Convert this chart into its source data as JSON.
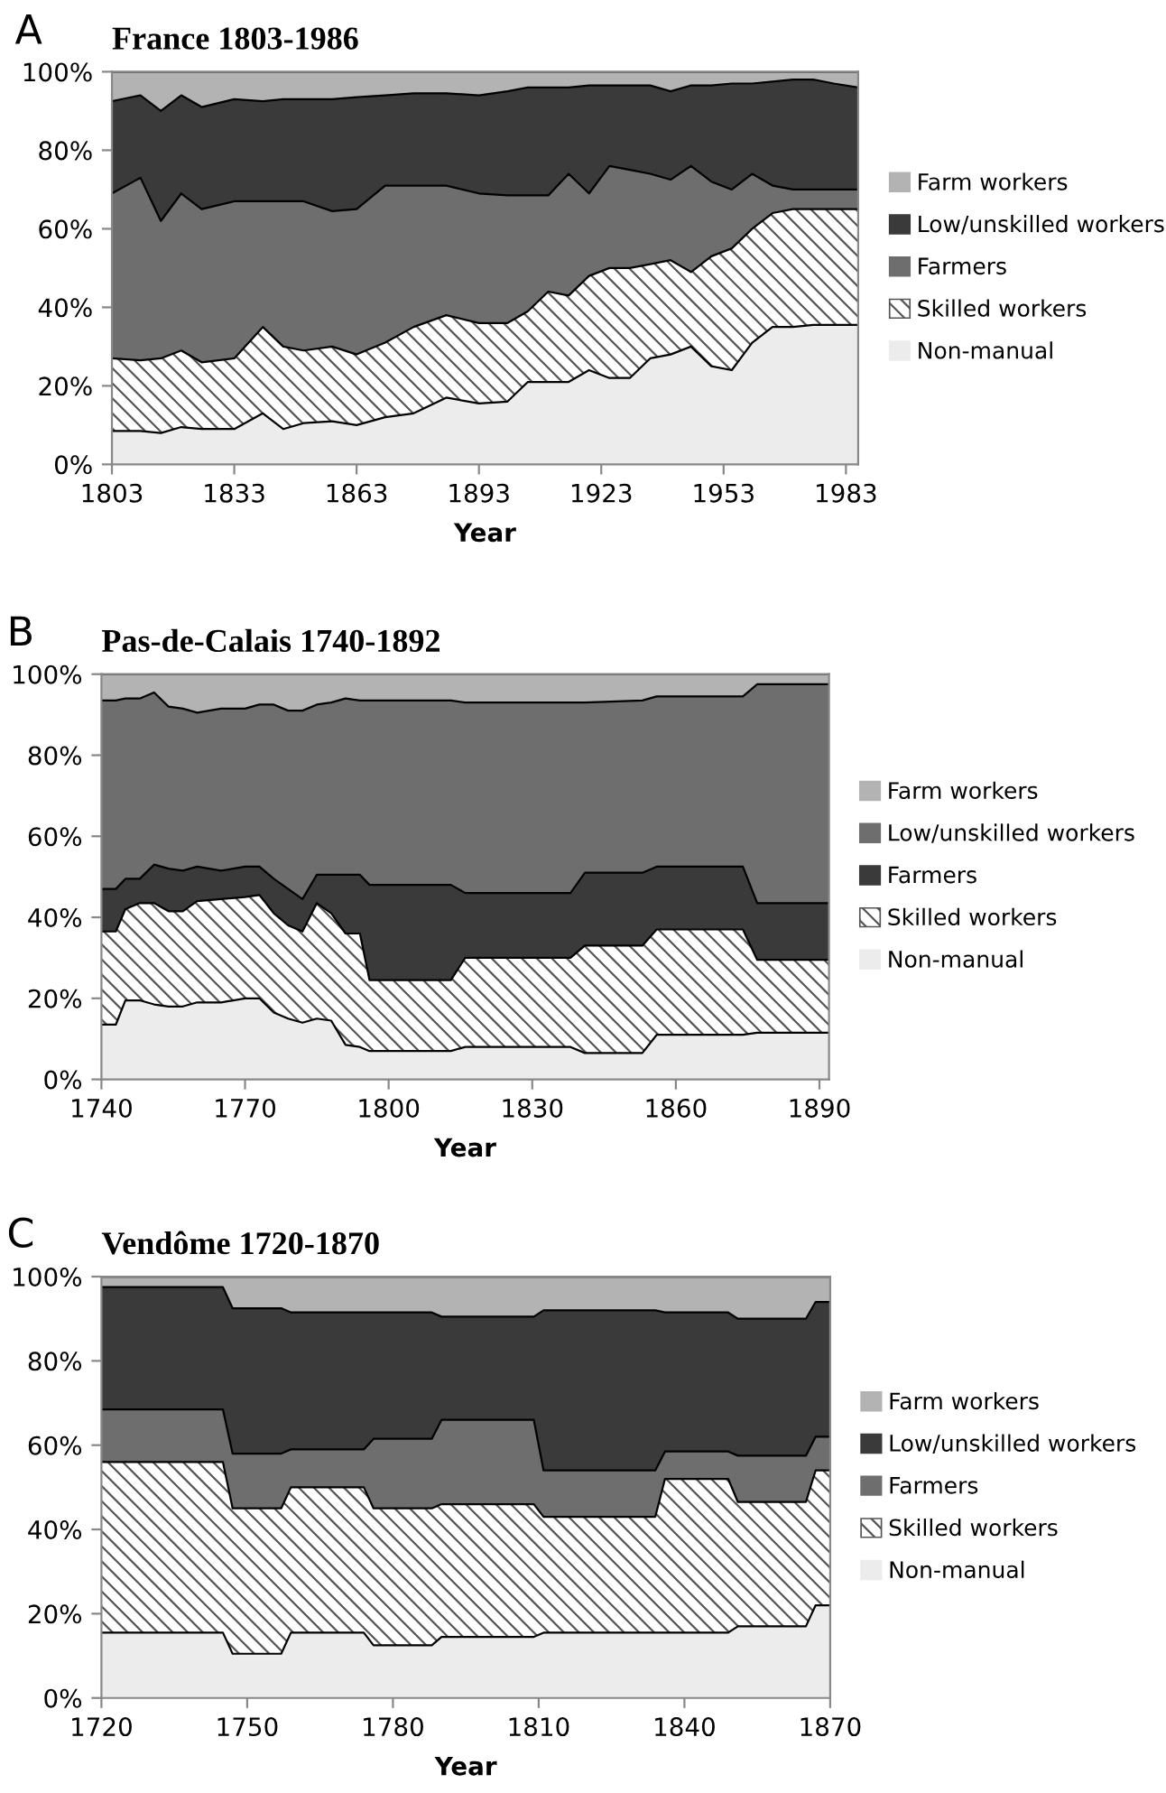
{
  "chart_data": [
    {
      "type": "area",
      "stacked": true,
      "title": "France 1803-1986",
      "xlabel": "Year",
      "annotations": [
        "A"
      ],
      "legend": "right",
      "grid": false,
      "x": [
        1803,
        1810,
        1815,
        1820,
        1825,
        1833,
        1840,
        1845,
        1850,
        1857,
        1863,
        1870,
        1877,
        1885,
        1893,
        1900,
        1905,
        1910,
        1915,
        1920,
        1925,
        1930,
        1935,
        1940,
        1945,
        1950,
        1955,
        1960,
        1965,
        1970,
        1975,
        1980,
        1986
      ],
      "xlim": [
        1803,
        1986
      ],
      "xticks": [
        1803,
        1833,
        1863,
        1893,
        1923,
        1953,
        1983
      ],
      "ylim": [
        0,
        100
      ],
      "yticks": [
        {
          "value": 0,
          "label": "0%"
        },
        {
          "value": 20,
          "label": "20%"
        },
        {
          "value": 40,
          "label": "40%"
        },
        {
          "value": 60,
          "label": "60%"
        },
        {
          "value": 80,
          "label": "80%"
        },
        {
          "value": 100,
          "label": "100%"
        }
      ],
      "series": [
        {
          "name": "Non-manual",
          "color": "#ececec",
          "values": [
            8.5,
            8.5,
            8,
            9.5,
            9,
            9,
            13,
            9,
            10.5,
            11,
            10,
            12,
            13,
            17,
            15.5,
            16,
            21,
            21,
            21,
            24,
            22,
            22,
            27,
            28,
            30,
            25,
            24,
            31,
            35,
            35,
            35.5,
            35.5,
            35.5
          ]
        },
        {
          "name": "Skilled workers",
          "color": "#555555",
          "values": [
            18.5,
            18,
            19,
            19.5,
            17,
            18,
            22,
            21,
            18.5,
            19,
            18,
            19,
            22,
            21,
            20.5,
            20,
            18,
            23,
            22,
            24,
            28,
            28,
            24,
            24,
            19,
            28,
            31,
            29,
            29,
            30,
            29.5,
            29.5,
            29.5
          ]
        },
        {
          "name": "Farmers",
          "color": "#6e6e6e",
          "values": [
            42,
            46.5,
            35,
            40,
            39,
            40,
            32,
            37,
            38,
            34.5,
            37,
            40,
            36,
            33,
            33,
            32.5,
            29.5,
            24.5,
            31,
            21,
            26,
            25,
            23,
            20.5,
            27,
            19,
            15,
            14,
            7,
            5,
            5,
            5,
            5
          ]
        },
        {
          "name": "Low/unskilled workers",
          "color": "#3a3a3a",
          "values": [
            23.5,
            21,
            28,
            25,
            26,
            26,
            25.5,
            26,
            26,
            28.5,
            28.5,
            23,
            23.5,
            23.5,
            25,
            26.5,
            27.5,
            27.5,
            22,
            27.5,
            20.5,
            21.5,
            22.5,
            22.5,
            20.5,
            24.5,
            27,
            23,
            26.5,
            28,
            28,
            27,
            26
          ]
        },
        {
          "name": "Farm workers",
          "color": "#b3b3b3",
          "values": [
            7.5,
            6,
            10,
            6,
            9,
            7,
            7.5,
            7,
            7,
            7,
            6.5,
            6,
            5.5,
            5.5,
            6,
            5,
            4,
            4,
            4,
            3.5,
            3.5,
            3.5,
            3.5,
            5,
            3.5,
            3.5,
            3,
            3,
            2.5,
            2,
            2,
            3,
            4
          ]
        }
      ]
    },
    {
      "type": "area",
      "stacked": true,
      "title": "Pas-de-Calais 1740-1892",
      "xlabel": "Year",
      "annotations": [
        "B"
      ],
      "legend": "right",
      "grid": false,
      "x": [
        1740,
        1743,
        1745,
        1748,
        1751,
        1754,
        1757,
        1760,
        1765,
        1770,
        1773,
        1776,
        1779,
        1782,
        1785,
        1788,
        1791,
        1794,
        1796,
        1800,
        1813,
        1816,
        1830,
        1838,
        1841,
        1853,
        1856,
        1865,
        1874,
        1877,
        1892
      ],
      "xlim": [
        1740,
        1892
      ],
      "xticks": [
        1740,
        1770,
        1800,
        1830,
        1860,
        1890
      ],
      "ylim": [
        0,
        100
      ],
      "yticks": [
        {
          "value": 0,
          "label": "0%"
        },
        {
          "value": 20,
          "label": "20%"
        },
        {
          "value": 40,
          "label": "40%"
        },
        {
          "value": 60,
          "label": "60%"
        },
        {
          "value": 80,
          "label": "80%"
        },
        {
          "value": 100,
          "label": "100%"
        }
      ],
      "series": [
        {
          "name": "Non-manual",
          "color": "#ececec",
          "values": [
            13.5,
            13.5,
            19.5,
            19.5,
            18.5,
            18,
            18,
            19,
            19,
            20,
            20,
            16.5,
            15,
            14,
            15,
            14.5,
            8.5,
            8,
            7,
            7,
            7,
            8,
            8,
            8,
            6.5,
            6.5,
            11,
            11,
            11,
            11.5,
            11.5
          ]
        },
        {
          "name": "Skilled workers",
          "color": "#555555",
          "values": [
            23,
            23,
            22.5,
            24,
            25,
            23.5,
            23.5,
            25,
            25.5,
            25,
            25.5,
            24.5,
            23,
            22.5,
            28.5,
            26.5,
            27.5,
            28,
            17.5,
            17.5,
            17.5,
            22,
            22,
            22,
            26.5,
            26.5,
            26,
            26,
            26,
            18,
            18
          ]
        },
        {
          "name": "Farmers",
          "color": "#3a3a3a",
          "values": [
            10.5,
            10.5,
            7.5,
            6,
            9.5,
            10.5,
            10,
            8.5,
            7,
            7.5,
            7,
            8.5,
            9,
            8,
            7,
            9.5,
            14.5,
            14.5,
            23.5,
            23.5,
            23.5,
            16,
            16,
            16,
            18,
            18,
            15.5,
            15.5,
            15.5,
            14,
            14
          ]
        },
        {
          "name": "Low/unskilled workers",
          "color": "#6e6e6e",
          "values": [
            46.5,
            46.5,
            44.5,
            44.5,
            42.5,
            40,
            40,
            38,
            40,
            39,
            40,
            43,
            44,
            46.5,
            42,
            42.5,
            43.5,
            43,
            45.5,
            45.5,
            45.5,
            47,
            47,
            47,
            42,
            42.5,
            42,
            42,
            42,
            54,
            54
          ]
        },
        {
          "name": "Farm workers",
          "color": "#b3b3b3",
          "values": [
            6.5,
            6.5,
            6,
            6,
            4.5,
            8,
            8.5,
            9.5,
            8.5,
            8.5,
            7.5,
            7.5,
            9,
            9,
            7.5,
            7,
            6,
            6.5,
            6.5,
            6.5,
            6.5,
            7,
            7,
            7,
            7,
            6.5,
            5.5,
            5.5,
            5.5,
            2.5,
            2.5
          ]
        }
      ]
    },
    {
      "type": "area",
      "stacked": true,
      "title": "Vendôme 1720-1870",
      "xlabel": "Year",
      "annotations": [
        "C"
      ],
      "legend": "right",
      "grid": false,
      "x": [
        1720,
        1745,
        1747,
        1757,
        1759,
        1774,
        1776,
        1788,
        1790,
        1809,
        1811,
        1834,
        1836,
        1849,
        1851,
        1865,
        1867,
        1870
      ],
      "xlim": [
        1720,
        1870
      ],
      "xticks": [
        1720,
        1750,
        1780,
        1810,
        1840,
        1870
      ],
      "ylim": [
        0,
        100
      ],
      "yticks": [
        {
          "value": 0,
          "label": "0%"
        },
        {
          "value": 20,
          "label": "20%"
        },
        {
          "value": 40,
          "label": "40%"
        },
        {
          "value": 60,
          "label": "60%"
        },
        {
          "value": 80,
          "label": "80%"
        },
        {
          "value": 100,
          "label": "100%"
        }
      ],
      "series": [
        {
          "name": "Non-manual",
          "color": "#ececec",
          "values": [
            15.5,
            15.5,
            10.5,
            10.5,
            15.5,
            15.5,
            12.5,
            12.5,
            14.5,
            14.5,
            15.5,
            15.5,
            15.5,
            15.5,
            17,
            17,
            22,
            22
          ]
        },
        {
          "name": "Skilled workers",
          "color": "#555555",
          "values": [
            40.5,
            40.5,
            34.5,
            34.5,
            34.5,
            34.5,
            32.5,
            32.5,
            31.5,
            31.5,
            27.5,
            27.5,
            36.5,
            36.5,
            29.5,
            29.5,
            32,
            32
          ]
        },
        {
          "name": "Farmers",
          "color": "#6e6e6e",
          "values": [
            12.5,
            12.5,
            13,
            13,
            9,
            9,
            16.5,
            16.5,
            20,
            20,
            11,
            11,
            6.5,
            6.5,
            11,
            11,
            8,
            8
          ]
        },
        {
          "name": "Low/unskilled workers",
          "color": "#3a3a3a",
          "values": [
            29,
            29,
            34.5,
            34.5,
            32.5,
            32.5,
            30,
            30,
            24.5,
            24.5,
            38,
            38,
            33,
            33,
            32.5,
            32.5,
            32,
            32
          ]
        },
        {
          "name": "Farm workers",
          "color": "#b3b3b3",
          "values": [
            2.5,
            2.5,
            7.5,
            7.5,
            8.5,
            8.5,
            8.5,
            8.5,
            9.5,
            9.5,
            8,
            8,
            8.5,
            8.5,
            10,
            10,
            6,
            6
          ]
        }
      ]
    }
  ]
}
